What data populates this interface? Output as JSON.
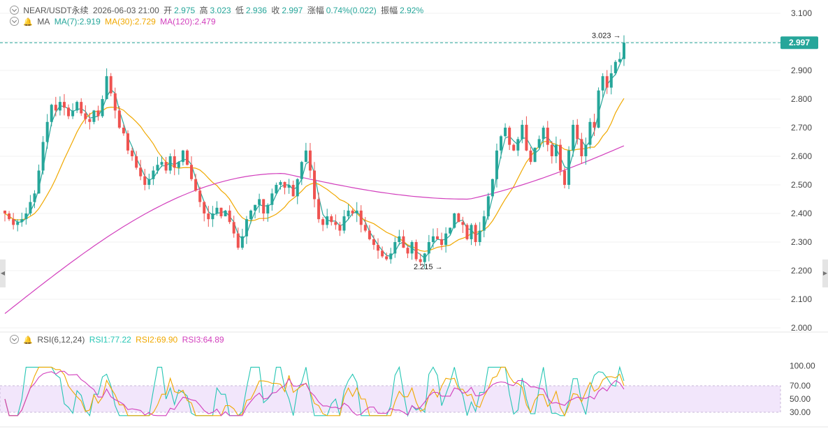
{
  "header": {
    "symbol": "NEAR/USDT永续",
    "datetime": "2026-06-03 21:00",
    "open_label": "开",
    "open": "2.975",
    "high_label": "高",
    "high": "3.023",
    "low_label": "低",
    "low": "2.936",
    "close_label": "收",
    "close": "2.997",
    "change_label": "涨幅",
    "change": "0.74%(0.022)",
    "amp_label": "振幅",
    "amp": "2.92%"
  },
  "ma_legend": {
    "title": "MA",
    "ma7": "MA(7):2.919",
    "ma30": "MA(30):2.729",
    "ma120": "MA(120):2.479"
  },
  "rsi_legend": {
    "title": "RSI(6,12,24)",
    "rsi1": "RSI1:77.22",
    "rsi2": "RSI2:69.90",
    "rsi3": "RSI3:64.89"
  },
  "price_axis": {
    "ticks": [
      "3.100",
      "3.000",
      "2.900",
      "2.800",
      "2.700",
      "2.600",
      "2.500",
      "2.400",
      "2.300",
      "2.200",
      "2.100",
      "2.000"
    ],
    "current_price": "2.997"
  },
  "rsi_axis": {
    "ticks": [
      "100.00",
      "70.00",
      "50.00",
      "30.00"
    ]
  },
  "annotations": {
    "high_marker": "3.023",
    "low_marker": "2.215"
  },
  "colors": {
    "up": "#26a69a",
    "down": "#ef5350",
    "ma7": "#26a69a",
    "ma30": "#f0a800",
    "ma120": "#d23fbd",
    "rsi1": "#26c6b4",
    "rsi2": "#f0a800",
    "rsi3": "#d23fbd",
    "rsi_band": "#f2e6fb"
  },
  "chart_data": {
    "type": "candlestick",
    "price_ylim": [
      2.0,
      3.1
    ],
    "rsi_ylim": [
      0,
      100
    ],
    "rsi_band": [
      30,
      70
    ],
    "close_path": [
      2.4,
      2.38,
      2.36,
      2.37,
      2.38,
      2.4,
      2.44,
      2.47,
      2.55,
      2.65,
      2.72,
      2.78,
      2.76,
      2.79,
      2.77,
      2.74,
      2.76,
      2.79,
      2.75,
      2.73,
      2.72,
      2.76,
      2.74,
      2.8,
      2.88,
      2.82,
      2.76,
      2.7,
      2.68,
      2.62,
      2.6,
      2.56,
      2.53,
      2.5,
      2.52,
      2.55,
      2.57,
      2.58,
      2.55,
      2.6,
      2.56,
      2.58,
      2.62,
      2.57,
      2.52,
      2.48,
      2.44,
      2.4,
      2.38,
      2.4,
      2.42,
      2.39,
      2.41,
      2.37,
      2.33,
      2.28,
      2.32,
      2.38,
      2.41,
      2.43,
      2.45,
      2.4,
      2.43,
      2.47,
      2.5,
      2.51,
      2.49,
      2.5,
      2.46,
      2.52,
      2.58,
      2.62,
      2.55,
      2.45,
      2.38,
      2.36,
      2.39,
      2.37,
      2.36,
      2.34,
      2.39,
      2.41,
      2.4,
      2.41,
      2.36,
      2.34,
      2.31,
      2.29,
      2.27,
      2.25,
      2.24,
      2.26,
      2.3,
      2.32,
      2.28,
      2.26,
      2.3,
      2.24,
      2.23,
      2.26,
      2.3,
      2.32,
      2.31,
      2.29,
      2.33,
      2.35,
      2.4,
      2.37,
      2.36,
      2.31,
      2.36,
      2.3,
      2.34,
      2.39,
      2.46,
      2.52,
      2.62,
      2.67,
      2.7,
      2.64,
      2.62,
      2.66,
      2.71,
      2.62,
      2.58,
      2.63,
      2.66,
      2.7,
      2.64,
      2.6,
      2.64,
      2.55,
      2.5,
      2.62,
      2.71,
      2.66,
      2.6,
      2.64,
      2.72,
      2.7,
      2.83,
      2.88,
      2.84,
      2.89,
      2.93,
      2.94,
      2.997
    ],
    "high_marker_value": 3.023,
    "low_marker_value": 2.215,
    "ma7_last": 2.919,
    "ma30_last": 2.729,
    "ma120_last": 2.479,
    "rsi1_last": 77.22,
    "rsi2_last": 69.9,
    "rsi3_last": 64.89
  }
}
